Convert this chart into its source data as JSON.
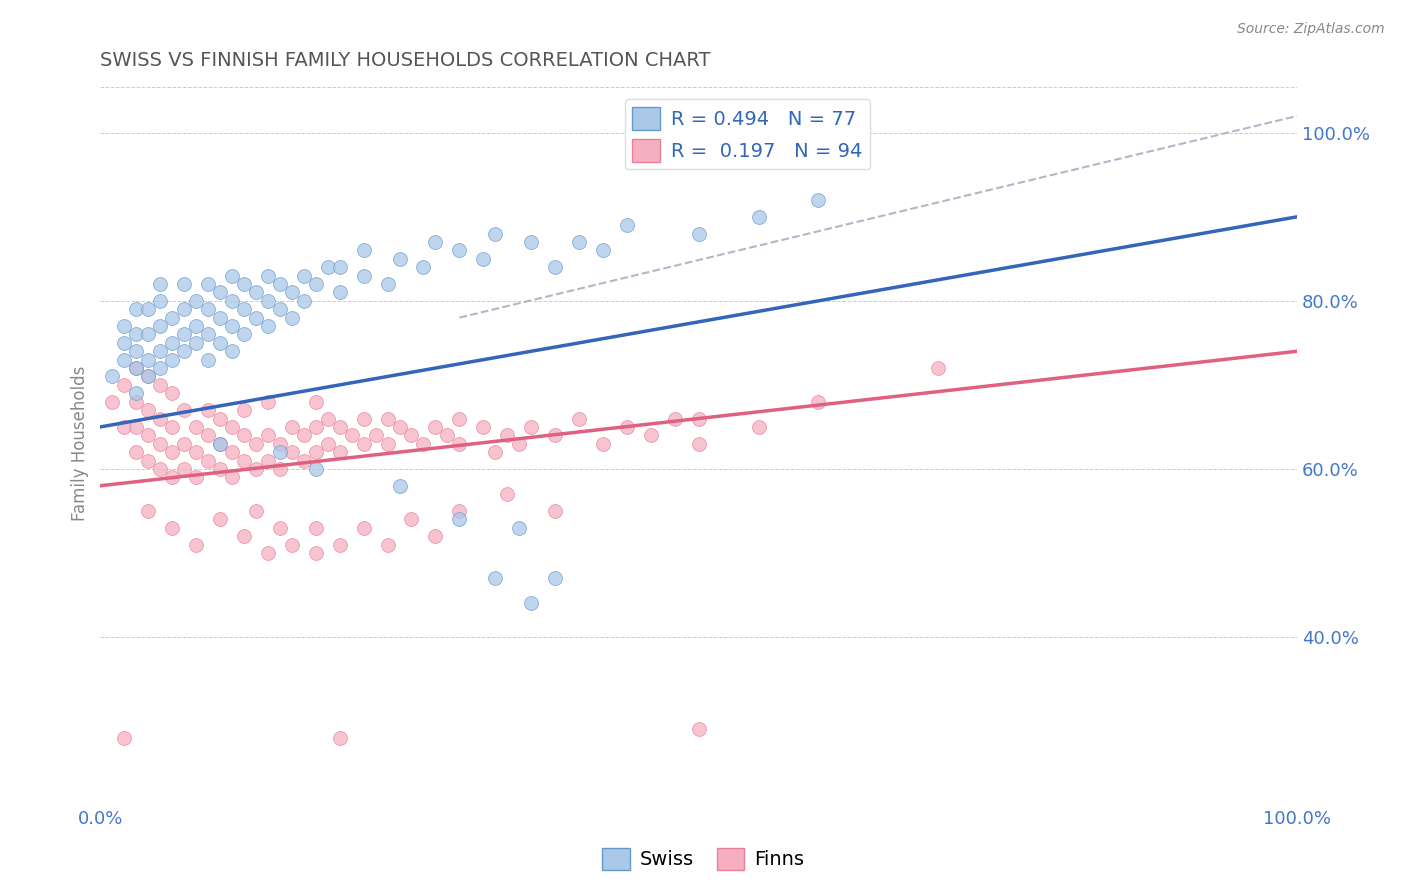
{
  "title": "SWISS VS FINNISH FAMILY HOUSEHOLDS CORRELATION CHART",
  "source": "Source: ZipAtlas.com",
  "ylabel": "Family Households",
  "xlim": [
    0.0,
    1.0
  ],
  "ylim": [
    0.2,
    1.06
  ],
  "yticks": [
    0.4,
    0.6,
    0.8,
    1.0
  ],
  "ytick_labels": [
    "40.0%",
    "60.0%",
    "80.0%",
    "100.0%"
  ],
  "xticks": [
    0.0,
    1.0
  ],
  "xtick_labels": [
    "0.0%",
    "100.0%"
  ],
  "swiss_R": 0.494,
  "swiss_N": 77,
  "finns_R": 0.197,
  "finns_N": 94,
  "swiss_color": "#aac8e8",
  "finns_color": "#f5afc0",
  "swiss_edge_color": "#6699cc",
  "finns_edge_color": "#e8809a",
  "swiss_line_color": "#3366bb",
  "finns_line_color": "#e06080",
  "dashed_line_color": "#b0b8c8",
  "axis_label_color": "#4477cc",
  "title_color": "#555555",
  "source_color": "#888888",
  "swiss_trend": [
    0.0,
    0.65,
    1.0,
    0.9
  ],
  "finns_trend": [
    0.0,
    0.58,
    1.0,
    0.74
  ],
  "dashed_trend": [
    0.3,
    0.78,
    1.0,
    1.02
  ],
  "swiss_scatter": [
    [
      0.01,
      0.71
    ],
    [
      0.02,
      0.73
    ],
    [
      0.02,
      0.75
    ],
    [
      0.02,
      0.77
    ],
    [
      0.03,
      0.69
    ],
    [
      0.03,
      0.72
    ],
    [
      0.03,
      0.74
    ],
    [
      0.03,
      0.76
    ],
    [
      0.03,
      0.79
    ],
    [
      0.04,
      0.71
    ],
    [
      0.04,
      0.73
    ],
    [
      0.04,
      0.76
    ],
    [
      0.04,
      0.79
    ],
    [
      0.05,
      0.72
    ],
    [
      0.05,
      0.74
    ],
    [
      0.05,
      0.77
    ],
    [
      0.05,
      0.8
    ],
    [
      0.05,
      0.82
    ],
    [
      0.06,
      0.73
    ],
    [
      0.06,
      0.75
    ],
    [
      0.06,
      0.78
    ],
    [
      0.07,
      0.74
    ],
    [
      0.07,
      0.76
    ],
    [
      0.07,
      0.79
    ],
    [
      0.07,
      0.82
    ],
    [
      0.08,
      0.75
    ],
    [
      0.08,
      0.77
    ],
    [
      0.08,
      0.8
    ],
    [
      0.09,
      0.73
    ],
    [
      0.09,
      0.76
    ],
    [
      0.09,
      0.79
    ],
    [
      0.09,
      0.82
    ],
    [
      0.1,
      0.75
    ],
    [
      0.1,
      0.78
    ],
    [
      0.1,
      0.81
    ],
    [
      0.11,
      0.74
    ],
    [
      0.11,
      0.77
    ],
    [
      0.11,
      0.8
    ],
    [
      0.11,
      0.83
    ],
    [
      0.12,
      0.76
    ],
    [
      0.12,
      0.79
    ],
    [
      0.12,
      0.82
    ],
    [
      0.13,
      0.78
    ],
    [
      0.13,
      0.81
    ],
    [
      0.14,
      0.77
    ],
    [
      0.14,
      0.8
    ],
    [
      0.14,
      0.83
    ],
    [
      0.15,
      0.79
    ],
    [
      0.15,
      0.82
    ],
    [
      0.16,
      0.78
    ],
    [
      0.16,
      0.81
    ],
    [
      0.17,
      0.8
    ],
    [
      0.17,
      0.83
    ],
    [
      0.18,
      0.82
    ],
    [
      0.19,
      0.84
    ],
    [
      0.2,
      0.81
    ],
    [
      0.2,
      0.84
    ],
    [
      0.22,
      0.83
    ],
    [
      0.22,
      0.86
    ],
    [
      0.24,
      0.82
    ],
    [
      0.25,
      0.85
    ],
    [
      0.27,
      0.84
    ],
    [
      0.28,
      0.87
    ],
    [
      0.3,
      0.86
    ],
    [
      0.32,
      0.85
    ],
    [
      0.33,
      0.88
    ],
    [
      0.36,
      0.87
    ],
    [
      0.38,
      0.84
    ],
    [
      0.4,
      0.87
    ],
    [
      0.42,
      0.86
    ],
    [
      0.44,
      0.89
    ],
    [
      0.5,
      0.88
    ],
    [
      0.55,
      0.9
    ],
    [
      0.6,
      0.92
    ],
    [
      0.1,
      0.63
    ],
    [
      0.15,
      0.62
    ],
    [
      0.18,
      0.6
    ],
    [
      0.25,
      0.58
    ],
    [
      0.3,
      0.54
    ],
    [
      0.33,
      0.47
    ],
    [
      0.36,
      0.44
    ],
    [
      0.38,
      0.47
    ],
    [
      0.35,
      0.53
    ]
  ],
  "finns_scatter": [
    [
      0.01,
      0.68
    ],
    [
      0.02,
      0.65
    ],
    [
      0.02,
      0.7
    ],
    [
      0.03,
      0.62
    ],
    [
      0.03,
      0.65
    ],
    [
      0.03,
      0.68
    ],
    [
      0.03,
      0.72
    ],
    [
      0.04,
      0.61
    ],
    [
      0.04,
      0.64
    ],
    [
      0.04,
      0.67
    ],
    [
      0.04,
      0.71
    ],
    [
      0.05,
      0.6
    ],
    [
      0.05,
      0.63
    ],
    [
      0.05,
      0.66
    ],
    [
      0.05,
      0.7
    ],
    [
      0.06,
      0.59
    ],
    [
      0.06,
      0.62
    ],
    [
      0.06,
      0.65
    ],
    [
      0.06,
      0.69
    ],
    [
      0.07,
      0.6
    ],
    [
      0.07,
      0.63
    ],
    [
      0.07,
      0.67
    ],
    [
      0.08,
      0.59
    ],
    [
      0.08,
      0.62
    ],
    [
      0.08,
      0.65
    ],
    [
      0.09,
      0.61
    ],
    [
      0.09,
      0.64
    ],
    [
      0.09,
      0.67
    ],
    [
      0.1,
      0.6
    ],
    [
      0.1,
      0.63
    ],
    [
      0.1,
      0.66
    ],
    [
      0.11,
      0.59
    ],
    [
      0.11,
      0.62
    ],
    [
      0.11,
      0.65
    ],
    [
      0.12,
      0.61
    ],
    [
      0.12,
      0.64
    ],
    [
      0.12,
      0.67
    ],
    [
      0.13,
      0.6
    ],
    [
      0.13,
      0.63
    ],
    [
      0.14,
      0.61
    ],
    [
      0.14,
      0.64
    ],
    [
      0.14,
      0.68
    ],
    [
      0.15,
      0.6
    ],
    [
      0.15,
      0.63
    ],
    [
      0.16,
      0.62
    ],
    [
      0.16,
      0.65
    ],
    [
      0.17,
      0.61
    ],
    [
      0.17,
      0.64
    ],
    [
      0.18,
      0.62
    ],
    [
      0.18,
      0.65
    ],
    [
      0.18,
      0.68
    ],
    [
      0.19,
      0.63
    ],
    [
      0.19,
      0.66
    ],
    [
      0.2,
      0.62
    ],
    [
      0.2,
      0.65
    ],
    [
      0.21,
      0.64
    ],
    [
      0.22,
      0.63
    ],
    [
      0.22,
      0.66
    ],
    [
      0.23,
      0.64
    ],
    [
      0.24,
      0.63
    ],
    [
      0.24,
      0.66
    ],
    [
      0.25,
      0.65
    ],
    [
      0.26,
      0.64
    ],
    [
      0.27,
      0.63
    ],
    [
      0.28,
      0.65
    ],
    [
      0.29,
      0.64
    ],
    [
      0.3,
      0.63
    ],
    [
      0.3,
      0.66
    ],
    [
      0.32,
      0.65
    ],
    [
      0.33,
      0.62
    ],
    [
      0.34,
      0.64
    ],
    [
      0.35,
      0.63
    ],
    [
      0.36,
      0.65
    ],
    [
      0.38,
      0.64
    ],
    [
      0.4,
      0.66
    ],
    [
      0.42,
      0.63
    ],
    [
      0.44,
      0.65
    ],
    [
      0.46,
      0.64
    ],
    [
      0.48,
      0.66
    ],
    [
      0.5,
      0.63
    ],
    [
      0.5,
      0.66
    ],
    [
      0.55,
      0.65
    ],
    [
      0.6,
      0.68
    ],
    [
      0.7,
      0.72
    ],
    [
      0.04,
      0.55
    ],
    [
      0.06,
      0.53
    ],
    [
      0.08,
      0.51
    ],
    [
      0.1,
      0.54
    ],
    [
      0.12,
      0.52
    ],
    [
      0.13,
      0.55
    ],
    [
      0.14,
      0.5
    ],
    [
      0.15,
      0.53
    ],
    [
      0.16,
      0.51
    ],
    [
      0.18,
      0.5
    ],
    [
      0.18,
      0.53
    ],
    [
      0.2,
      0.51
    ],
    [
      0.22,
      0.53
    ],
    [
      0.24,
      0.51
    ],
    [
      0.26,
      0.54
    ],
    [
      0.28,
      0.52
    ],
    [
      0.3,
      0.55
    ],
    [
      0.34,
      0.57
    ],
    [
      0.38,
      0.55
    ],
    [
      0.02,
      0.28
    ],
    [
      0.2,
      0.28
    ],
    [
      0.5,
      0.29
    ]
  ]
}
